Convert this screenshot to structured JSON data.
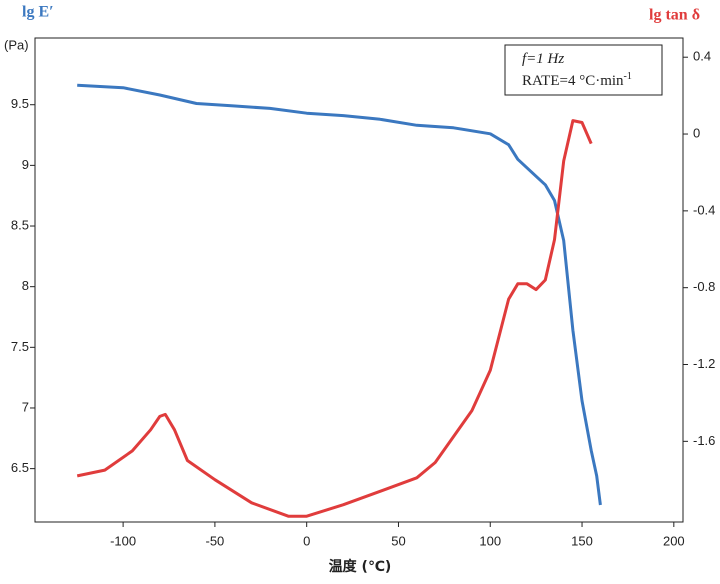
{
  "chart_data": {
    "type": "line",
    "y_label": "lg E′",
    "y_unit": "(Pa)",
    "y2_label": "lg tan δ",
    "x_label": "温度 (℃)",
    "annotations": [
      "f=1 Hz",
      "RATE=4 °C·min",
      "-1"
    ],
    "xlim": [
      -148,
      205
    ],
    "xticks": [
      -100,
      -50,
      0,
      50,
      100,
      150,
      200
    ],
    "ylim": [
      6.06,
      10.05
    ],
    "yticks": [
      6.5,
      7,
      7.5,
      8,
      8.5,
      9,
      9.5
    ],
    "y2lim": [
      -2.02,
      0.5
    ],
    "y2ticks": [
      -1.6,
      -1.2,
      -0.8,
      -0.4,
      0,
      0.4
    ],
    "series": [
      {
        "name": "lg E′",
        "color": "#3b78c0",
        "x": [
          -125,
          -100,
          -80,
          -60,
          -40,
          -20,
          0,
          20,
          40,
          60,
          80,
          100,
          110,
          115,
          125,
          130,
          135,
          140,
          145,
          150,
          155,
          158,
          160
        ],
        "values": [
          9.66,
          9.64,
          9.58,
          9.51,
          9.49,
          9.47,
          9.43,
          9.41,
          9.38,
          9.33,
          9.31,
          9.26,
          9.17,
          9.05,
          8.91,
          8.84,
          8.71,
          8.38,
          7.64,
          7.06,
          6.65,
          6.44,
          6.2
        ]
      },
      {
        "name": "lg tan δ",
        "color": "#e03c3c",
        "axis": "y2",
        "x": [
          -125,
          -110,
          -95,
          -85,
          -80,
          -77,
          -72,
          -65,
          -50,
          -30,
          -10,
          0,
          20,
          40,
          60,
          70,
          90,
          100,
          110,
          115,
          120,
          125,
          130,
          135,
          140,
          145,
          150,
          155
        ],
        "values": [
          -1.78,
          -1.75,
          -1.65,
          -1.54,
          -1.47,
          -1.46,
          -1.54,
          -1.7,
          -1.8,
          -1.92,
          -1.99,
          -1.99,
          -1.93,
          -1.86,
          -1.79,
          -1.71,
          -1.44,
          -1.23,
          -0.86,
          -0.78,
          -0.78,
          -0.81,
          -0.76,
          -0.55,
          -0.14,
          0.07,
          0.06,
          -0.05
        ]
      }
    ]
  }
}
